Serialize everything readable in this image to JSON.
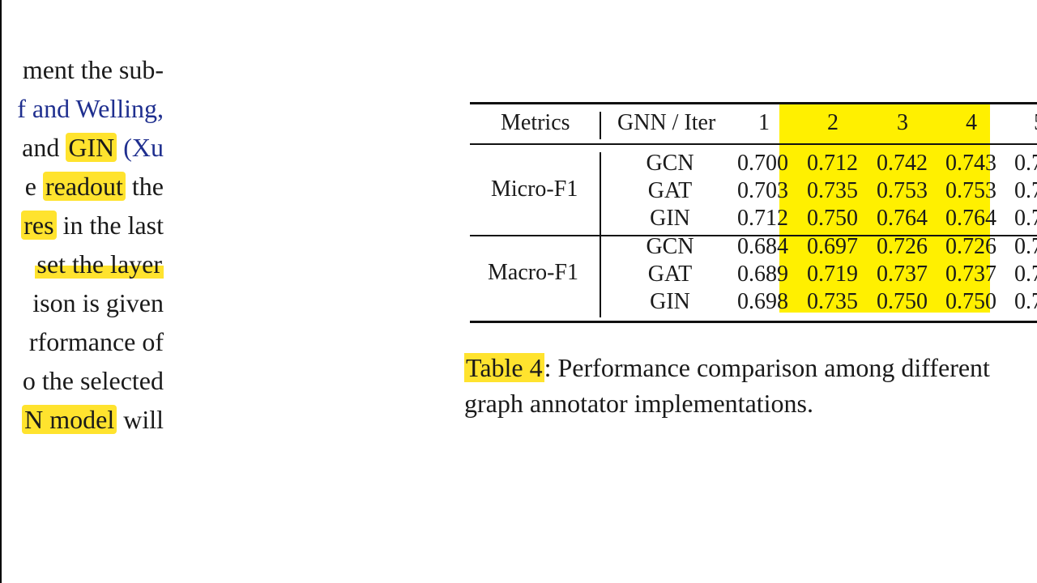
{
  "left_text": [
    {
      "parts": [
        {
          "t": "ment the sub-",
          "style": "plain"
        }
      ]
    },
    {
      "parts": [
        {
          "t": "f and Welling,",
          "style": "blue"
        }
      ]
    },
    {
      "parts": [
        {
          "t": "and ",
          "style": "plain"
        },
        {
          "t": "GIN",
          "style": "hl"
        },
        {
          "t": " (Xu",
          "style": "blue"
        }
      ]
    },
    {
      "parts": [
        {
          "t": "e ",
          "style": "plain"
        },
        {
          "t": "readout",
          "style": "hl"
        },
        {
          "t": " the",
          "style": "plain"
        }
      ]
    },
    {
      "parts": [
        {
          "t": "res",
          "style": "hl"
        },
        {
          "t": " in the last",
          "style": "plain"
        }
      ]
    },
    {
      "parts": [
        {
          "t": " set the layer",
          "style": "hl-under"
        }
      ]
    },
    {
      "parts": [
        {
          "t": "ison is given",
          "style": "plain"
        }
      ]
    },
    {
      "parts": [
        {
          "t": "rformance of",
          "style": "plain"
        }
      ]
    },
    {
      "parts": [
        {
          "t": "o the selected",
          "style": "plain"
        }
      ]
    },
    {
      "parts": [
        {
          "t": "N model",
          "style": "hl"
        },
        {
          "t": " will",
          "style": "plain"
        }
      ]
    }
  ],
  "table": {
    "headers": [
      "Metrics",
      "GNN / Iter",
      "1",
      "2",
      "3",
      "4",
      "5"
    ],
    "groups": [
      {
        "metric": "Micro-F1",
        "rows": [
          {
            "model": "GCN",
            "values": [
              "0.700",
              "0.712",
              "0.742",
              "0.743",
              "0.7"
            ]
          },
          {
            "model": "GAT",
            "values": [
              "0.703",
              "0.735",
              "0.753",
              "0.753",
              "0.7"
            ]
          },
          {
            "model": "GIN",
            "values": [
              "0.712",
              "0.750",
              "0.764",
              "0.764",
              "0.7"
            ]
          }
        ]
      },
      {
        "metric": "Macro-F1",
        "rows": [
          {
            "model": "GCN",
            "values": [
              "0.684",
              "0.697",
              "0.726",
              "0.726",
              "0.7"
            ]
          },
          {
            "model": "GAT",
            "values": [
              "0.689",
              "0.719",
              "0.737",
              "0.737",
              "0.7"
            ]
          },
          {
            "model": "GIN",
            "values": [
              "0.698",
              "0.735",
              "0.750",
              "0.750",
              "0.7"
            ]
          }
        ]
      }
    ],
    "highlight_color": "#fff000"
  },
  "caption": {
    "label": "Table 4",
    "line1": ": Performance comparison among different",
    "line2": "graph annotator implementations."
  }
}
